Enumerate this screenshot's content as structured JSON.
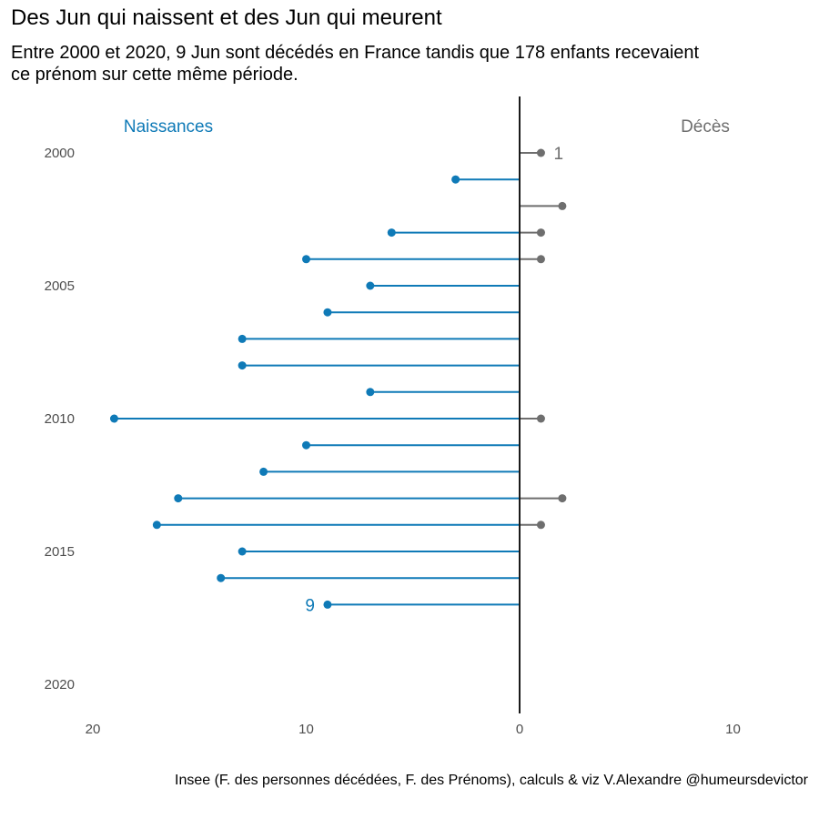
{
  "title": "Des Jun qui naissent et des Jun qui meurent",
  "subtitle": "Entre 2000 et 2020, 9 Jun sont décédés en France tandis que 178 enfants recevaient ce prénom sur cette même période.",
  "caption": "Insee (F. des personnes décédées, F. des Prénoms), calculs & viz V.Alexandre @humeursdevictor",
  "colors": {
    "births": "#0f7ab7",
    "deaths": "#6e6e6e",
    "axis": "#1a1a1a"
  },
  "chart_data": {
    "type": "lollipop",
    "orientation": "horizontal, diverging around zero",
    "y_categories": [
      2000,
      2001,
      2002,
      2003,
      2004,
      2005,
      2006,
      2007,
      2008,
      2009,
      2010,
      2011,
      2012,
      2013,
      2014,
      2015,
      2016,
      2017,
      2018,
      2019,
      2020
    ],
    "y_tick_labels": [
      "2000",
      "2005",
      "2010",
      "2015",
      "2020"
    ],
    "x_tick_labels": [
      "20",
      "10",
      "0",
      "10"
    ],
    "x_range": [
      -20,
      13
    ],
    "side_labels": {
      "left": "Naissances",
      "right": "Décès"
    },
    "series": [
      {
        "name": "Naissances",
        "values": [
          0,
          3,
          0,
          6,
          10,
          7,
          9,
          13,
          13,
          7,
          19,
          10,
          12,
          16,
          17,
          13,
          14,
          9,
          0,
          0,
          0
        ]
      },
      {
        "name": "Décès",
        "values": [
          1,
          0,
          2,
          1,
          1,
          0,
          0,
          0,
          0,
          0,
          1,
          0,
          0,
          2,
          1,
          0,
          0,
          0,
          0,
          0,
          0
        ]
      }
    ],
    "annotations": [
      {
        "text": "1",
        "series": "Décès",
        "year": 2000
      },
      {
        "text": "9",
        "series": "Naissances",
        "year": 2017
      }
    ]
  }
}
